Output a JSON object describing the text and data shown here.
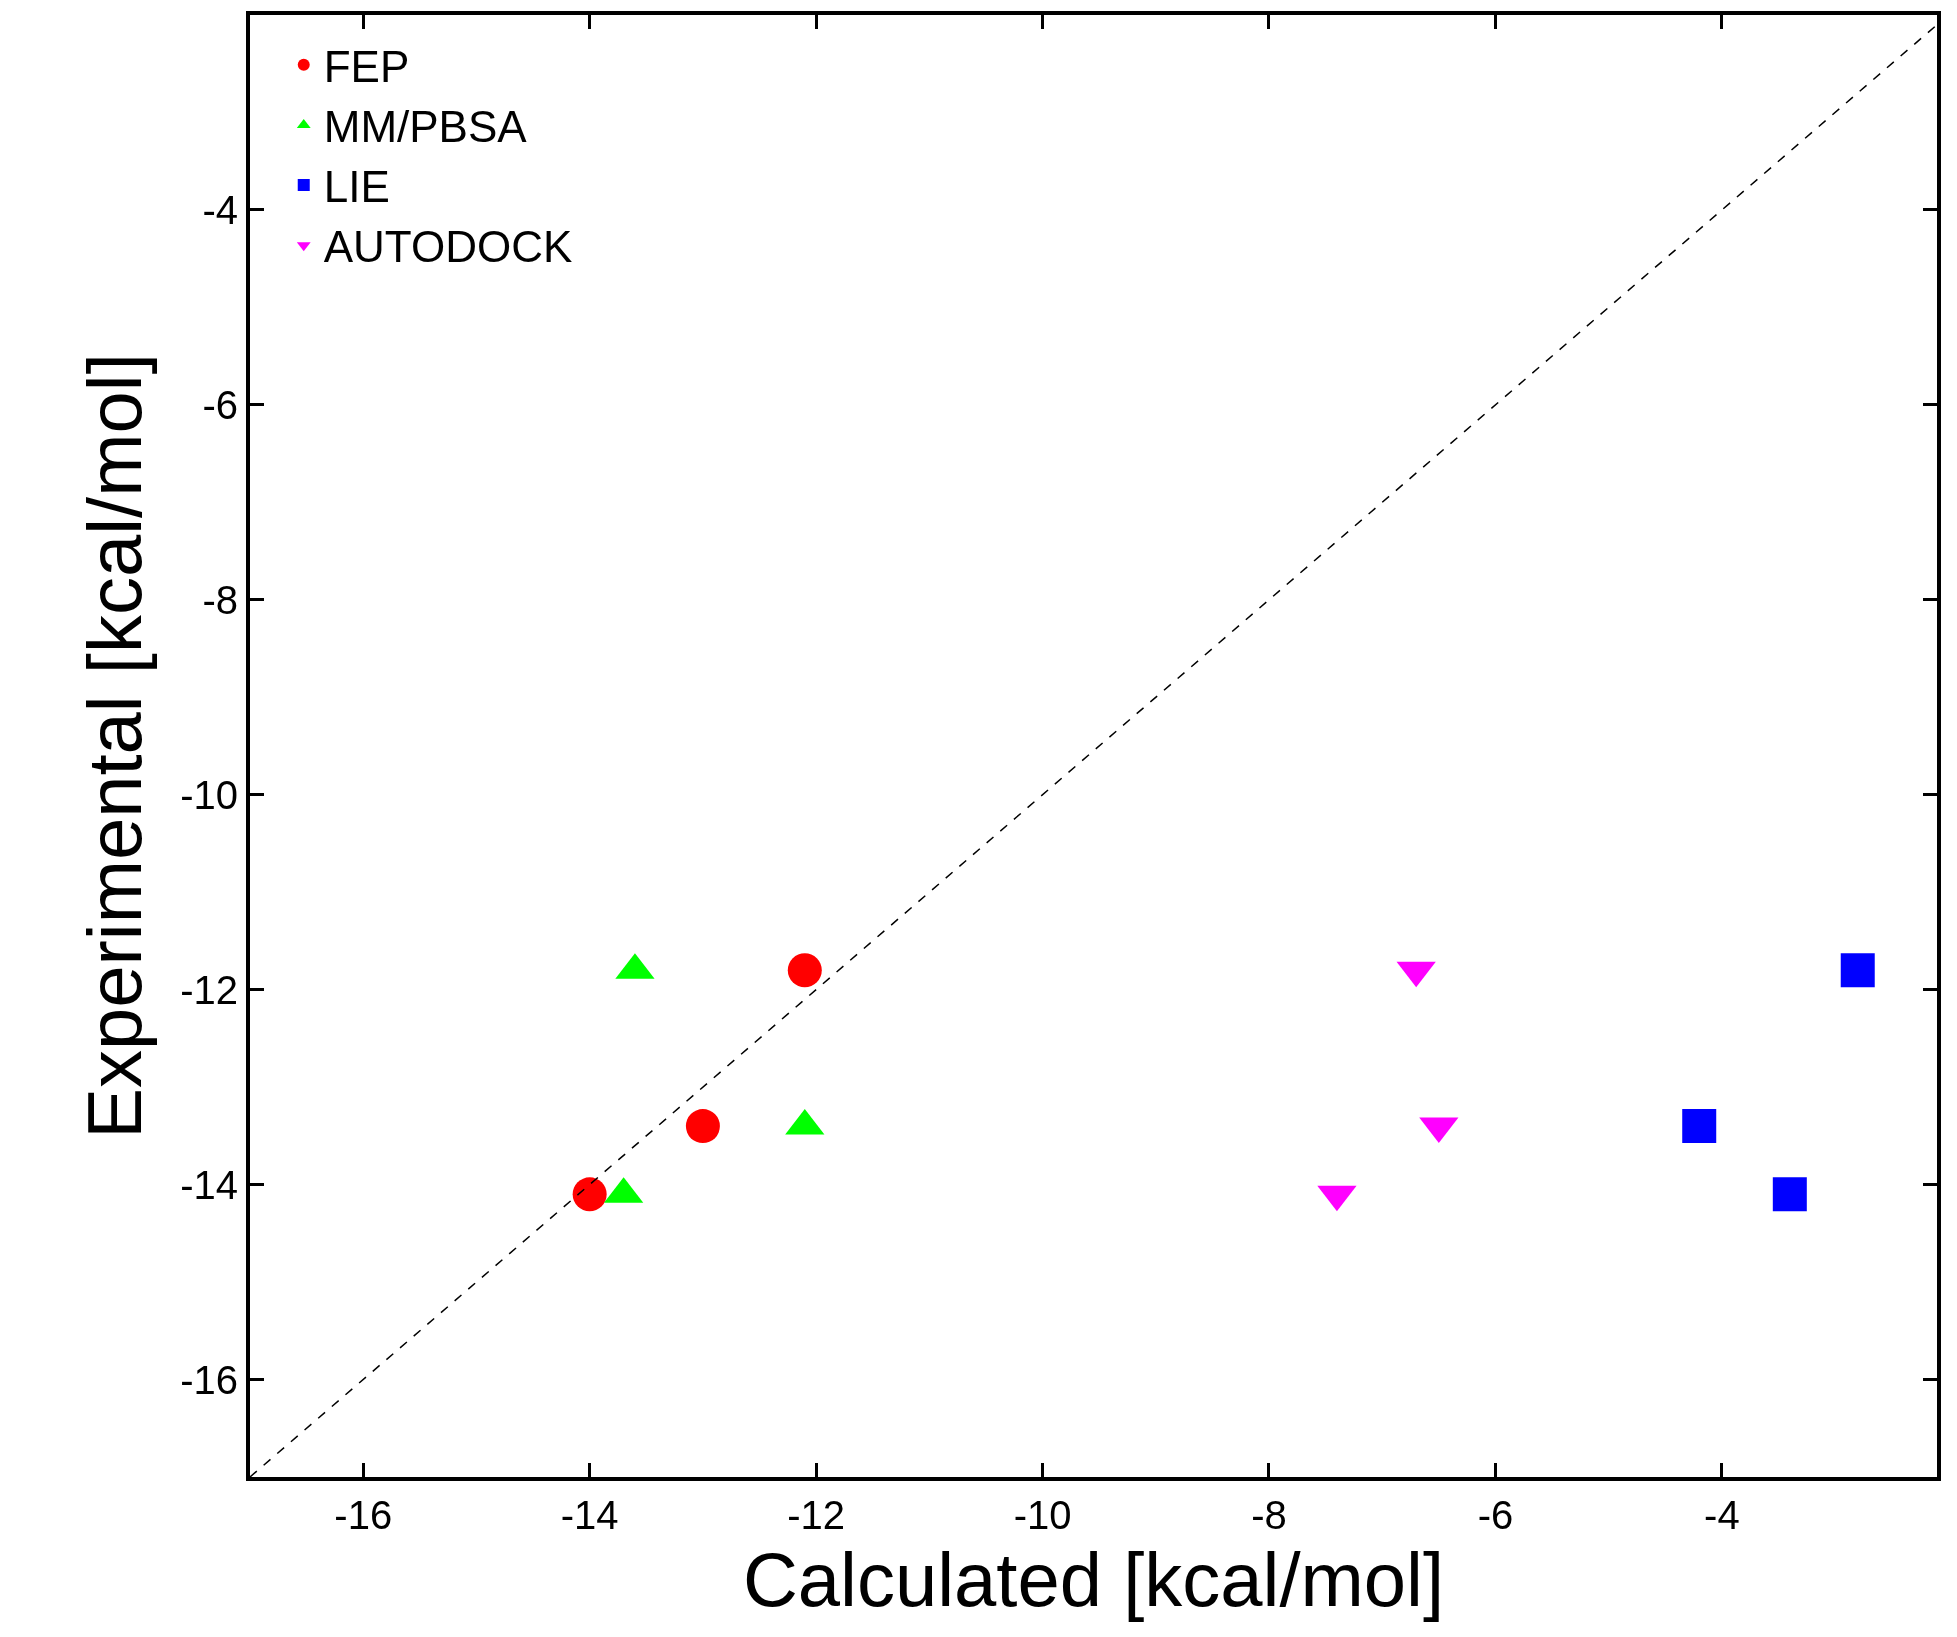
{
  "chart_data": {
    "type": "scatter",
    "xlabel": "Calculated [kcal/mol]",
    "ylabel": "Experimental [kcal/mol]",
    "xlim": [
      -17,
      -2.1
    ],
    "ylim": [
      -17,
      -2
    ],
    "xticks": [
      -16,
      -14,
      -12,
      -10,
      -8,
      -6,
      -4
    ],
    "yticks": [
      -16,
      -14,
      -12,
      -10,
      -8,
      -6,
      -4
    ],
    "legend": "top left",
    "series": [
      {
        "name": "FEP",
        "color": "#ff0000",
        "marker": "circle",
        "x": [
          -14.0,
          -13.0,
          -12.1
        ],
        "values": [
          -14.1,
          -13.4,
          -11.8
        ]
      },
      {
        "name": "MM/PBSA",
        "color": "#00ff00",
        "marker": "triangle",
        "x": [
          -13.7,
          -13.6,
          -12.1
        ],
        "values": [
          -14.1,
          -11.8,
          -13.4
        ]
      },
      {
        "name": "LIE",
        "color": "#0000ff",
        "marker": "square",
        "x": [
          -4.2,
          -3.4,
          -2.8
        ],
        "values": [
          -13.4,
          -14.1,
          -11.8
        ]
      },
      {
        "name": "AUTODOCK",
        "color": "#ff00ff",
        "marker": "triangle-down",
        "x": [
          -7.4,
          -6.7,
          -6.5
        ],
        "values": [
          -14.1,
          -11.8,
          -13.4
        ]
      },
      {
        "type": "line",
        "color": "#000000",
        "marker": "none",
        "line_style": "dashed",
        "x": [
          -17,
          -2.1
        ],
        "values": [
          -17,
          -2.1
        ]
      }
    ]
  }
}
